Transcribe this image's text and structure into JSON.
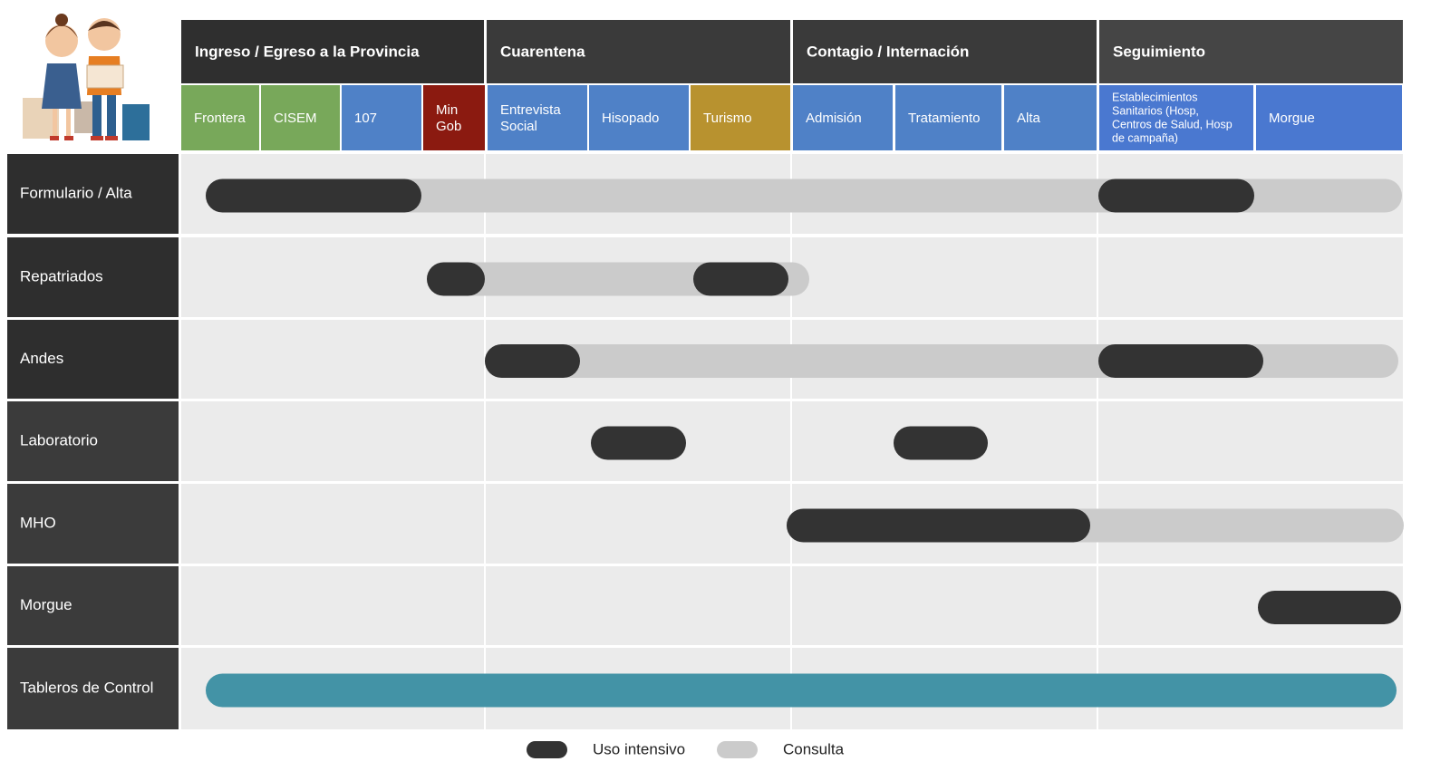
{
  "phases": [
    "Ingreso / Egreso a la Provincia",
    "Cuarentena",
    "Contagio / Internación",
    "Seguimiento"
  ],
  "subphases": [
    {
      "label": "Frontera",
      "color": "#78a85a"
    },
    {
      "label": "CISEM",
      "color": "#78a85a"
    },
    {
      "label": "107",
      "color": "#4f81c7"
    },
    {
      "label": "Min Gob",
      "color": "#8b1a10"
    },
    {
      "label": "Entrevista Social",
      "color": "#4f81c7"
    },
    {
      "label": "Hisopado",
      "color": "#4f81c7"
    },
    {
      "label": "Turismo",
      "color": "#b8922f"
    },
    {
      "label": "Admisión",
      "color": "#4f81c7"
    },
    {
      "label": "Tratamiento",
      "color": "#4f81c7"
    },
    {
      "label": "Alta",
      "color": "#4f81c7"
    },
    {
      "label": "Establecimientos Sanitarios (Hosp, Centros de Salud, Hosp de campaña)",
      "color": "#4a78d0"
    },
    {
      "label": "Morgue",
      "color": "#4a78d0"
    }
  ],
  "rows": [
    "Formulario / Alta",
    "Repatriados",
    "Andes",
    "Laboratorio",
    "MHO",
    "Morgue",
    "Tableros de Control"
  ],
  "legend": [
    "Uso intensivo",
    "Consulta"
  ]
}
